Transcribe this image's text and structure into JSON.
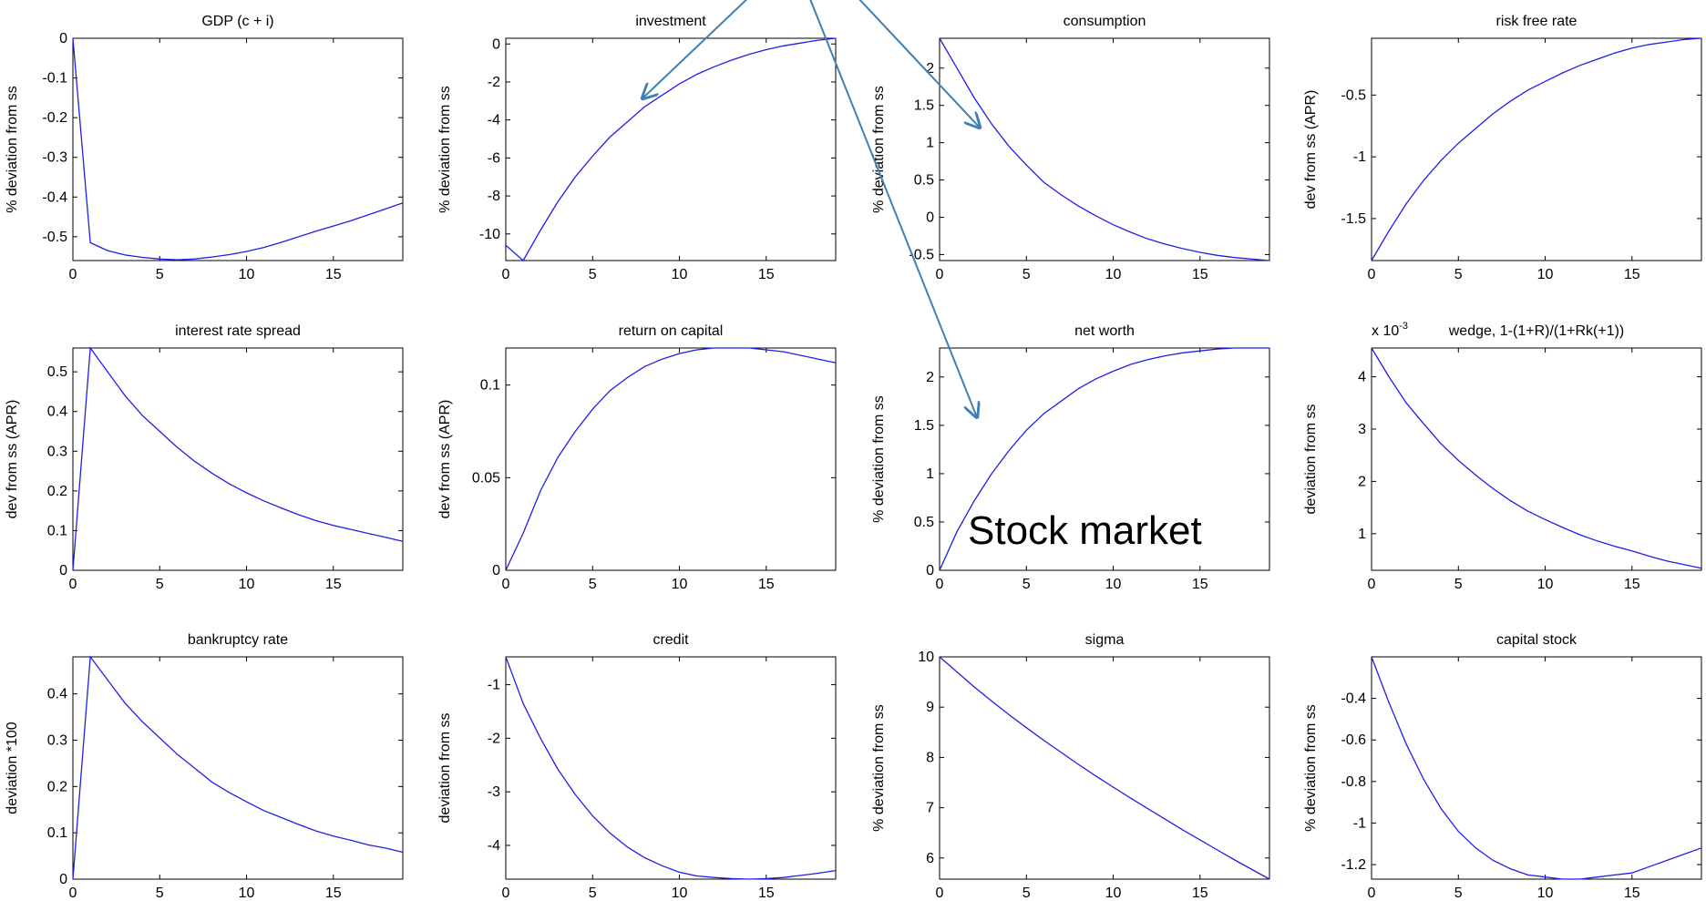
{
  "chart_data": [
    {
      "type": "line",
      "title": "GDP (c + i)",
      "xlabel": "",
      "ylabel": "% deviation from ss",
      "xlim": [
        0,
        19
      ],
      "ylim": [
        -0.56,
        0
      ],
      "xticks": [
        0,
        5,
        10,
        15
      ],
      "yticks": [
        -0.5,
        -0.4,
        -0.3,
        -0.2,
        -0.1,
        0
      ],
      "ytick_labels": [
        "-0.5",
        "-0.4",
        "-0.3",
        "-0.2",
        "-0.1",
        "0"
      ],
      "x": [
        0,
        1,
        2,
        3,
        4,
        5,
        6,
        7,
        8,
        9,
        10,
        11,
        12,
        13,
        14,
        15,
        16,
        17,
        18,
        19
      ],
      "y": [
        0,
        -0.515,
        -0.535,
        -0.546,
        -0.552,
        -0.556,
        -0.558,
        -0.556,
        -0.551,
        -0.545,
        -0.537,
        -0.527,
        -0.514,
        -0.5,
        -0.486,
        -0.473,
        -0.46,
        -0.445,
        -0.43,
        -0.415
      ]
    },
    {
      "type": "line",
      "title": "investment",
      "xlabel": "",
      "ylabel": "% deviation from ss",
      "xlim": [
        0,
        19
      ],
      "ylim": [
        -11.4,
        0.3
      ],
      "xticks": [
        0,
        5,
        10,
        15
      ],
      "yticks": [
        -10,
        -8,
        -6,
        -4,
        -2,
        0
      ],
      "ytick_labels": [
        "-10",
        "-8",
        "-6",
        "-4",
        "-2",
        "0"
      ],
      "x": [
        0,
        1,
        2,
        3,
        4,
        5,
        6,
        7,
        8,
        9,
        10,
        11,
        12,
        13,
        14,
        15,
        16,
        17,
        18,
        19
      ],
      "y": [
        -10.6,
        -11.4,
        -9.8,
        -8.3,
        -7.0,
        -5.9,
        -4.9,
        -4.1,
        -3.3,
        -2.7,
        -2.1,
        -1.6,
        -1.2,
        -0.85,
        -0.55,
        -0.3,
        -0.1,
        0.05,
        0.2,
        0.3
      ]
    },
    {
      "type": "line",
      "title": "consumption",
      "xlabel": "",
      "ylabel": "% deviation from ss",
      "xlim": [
        0,
        19
      ],
      "ylim": [
        -0.58,
        2.4
      ],
      "xticks": [
        0,
        5,
        10,
        15
      ],
      "yticks": [
        -0.5,
        0,
        0.5,
        1,
        1.5,
        2
      ],
      "ytick_labels": [
        "-0.5",
        "0",
        "0.5",
        "1",
        "1.5",
        "2"
      ],
      "x": [
        0,
        1,
        2,
        3,
        4,
        5,
        6,
        7,
        8,
        9,
        10,
        11,
        12,
        13,
        14,
        15,
        16,
        17,
        18,
        19
      ],
      "y": [
        2.4,
        2.0,
        1.6,
        1.25,
        0.95,
        0.7,
        0.47,
        0.3,
        0.15,
        0.02,
        -0.1,
        -0.2,
        -0.29,
        -0.36,
        -0.42,
        -0.47,
        -0.51,
        -0.54,
        -0.56,
        -0.58
      ]
    },
    {
      "type": "line",
      "title": "risk free rate",
      "xlabel": "",
      "ylabel": "dev from ss (APR)",
      "xlim": [
        0,
        19
      ],
      "ylim": [
        -1.84,
        -0.04
      ],
      "xticks": [
        0,
        5,
        10,
        15
      ],
      "yticks": [
        -1.5,
        -1,
        -0.5
      ],
      "ytick_labels": [
        "-1.5",
        "-1",
        "-0.5"
      ],
      "x": [
        0,
        1,
        2,
        3,
        4,
        5,
        6,
        7,
        8,
        9,
        10,
        11,
        12,
        13,
        14,
        15,
        16,
        17,
        18,
        19
      ],
      "y": [
        -1.84,
        -1.6,
        -1.38,
        -1.19,
        -1.03,
        -0.89,
        -0.77,
        -0.65,
        -0.55,
        -0.46,
        -0.39,
        -0.32,
        -0.26,
        -0.21,
        -0.16,
        -0.12,
        -0.09,
        -0.07,
        -0.05,
        -0.04
      ]
    },
    {
      "type": "line",
      "title": "interest rate spread",
      "xlabel": "",
      "ylabel": "dev from ss (APR)",
      "xlim": [
        0,
        19
      ],
      "ylim": [
        0,
        0.56
      ],
      "xticks": [
        0,
        5,
        10,
        15
      ],
      "yticks": [
        0,
        0.1,
        0.2,
        0.3,
        0.4,
        0.5
      ],
      "ytick_labels": [
        "0",
        "0.1",
        "0.2",
        "0.3",
        "0.4",
        "0.5"
      ],
      "x": [
        0,
        1,
        2,
        3,
        4,
        5,
        6,
        7,
        8,
        9,
        10,
        11,
        12,
        13,
        14,
        15,
        16,
        17,
        18,
        19
      ],
      "y": [
        0,
        0.56,
        0.5,
        0.44,
        0.39,
        0.35,
        0.31,
        0.275,
        0.245,
        0.218,
        0.195,
        0.175,
        0.157,
        0.14,
        0.125,
        0.113,
        0.103,
        0.093,
        0.083,
        0.073
      ]
    },
    {
      "type": "line",
      "title": "return on capital",
      "xlabel": "",
      "ylabel": "dev from ss (APR)",
      "xlim": [
        0,
        19
      ],
      "ylim": [
        0,
        0.12
      ],
      "xticks": [
        0,
        5,
        10,
        15
      ],
      "yticks": [
        0,
        0.05,
        0.1
      ],
      "ytick_labels": [
        "0",
        "0.05",
        "0.1"
      ],
      "x": [
        0,
        1,
        2,
        3,
        4,
        5,
        6,
        7,
        8,
        9,
        10,
        11,
        12,
        13,
        14,
        15,
        16,
        17,
        18,
        19
      ],
      "y": [
        0,
        0.02,
        0.043,
        0.061,
        0.075,
        0.087,
        0.097,
        0.104,
        0.11,
        0.114,
        0.117,
        0.119,
        0.12,
        0.12,
        0.12,
        0.119,
        0.118,
        0.116,
        0.114,
        0.112
      ]
    },
    {
      "type": "line",
      "title": "net worth",
      "xlabel": "",
      "ylabel": "% deviation from ss",
      "xlim": [
        0,
        19
      ],
      "ylim": [
        0,
        2.3
      ],
      "xticks": [
        0,
        5,
        10,
        15
      ],
      "yticks": [
        0,
        0.5,
        1,
        1.5,
        2
      ],
      "ytick_labels": [
        "0",
        "0.5",
        "1",
        "1.5",
        "2"
      ],
      "annotation": "Stock market",
      "x": [
        0,
        1,
        2,
        3,
        4,
        5,
        6,
        7,
        8,
        9,
        10,
        11,
        12,
        13,
        14,
        15,
        16,
        17,
        18,
        19
      ],
      "y": [
        0,
        0.4,
        0.72,
        1.0,
        1.24,
        1.45,
        1.62,
        1.75,
        1.88,
        1.98,
        2.06,
        2.13,
        2.18,
        2.22,
        2.25,
        2.27,
        2.29,
        2.3,
        2.3,
        2.3
      ]
    },
    {
      "type": "line",
      "title": "wedge, 1-(1+R)/(1+Rk(+1))",
      "xlabel": "",
      "ylabel": "deviation from ss",
      "xlim": [
        0,
        19
      ],
      "ylim": [
        0.3,
        4.55
      ],
      "scale_label": "x 10",
      "scale_exponent": "-3",
      "xticks": [
        0,
        5,
        10,
        15
      ],
      "yticks": [
        1,
        2,
        3,
        4
      ],
      "ytick_labels": [
        "1",
        "2",
        "3",
        "4"
      ],
      "x": [
        0,
        1,
        2,
        3,
        4,
        5,
        6,
        7,
        8,
        9,
        10,
        11,
        12,
        13,
        14,
        15,
        16,
        17,
        18,
        19
      ],
      "y": [
        4.55,
        4.0,
        3.5,
        3.1,
        2.72,
        2.4,
        2.12,
        1.86,
        1.63,
        1.43,
        1.27,
        1.12,
        0.98,
        0.86,
        0.76,
        0.67,
        0.57,
        0.48,
        0.41,
        0.34
      ]
    },
    {
      "type": "line",
      "title": "bankruptcy rate",
      "xlabel": "",
      "ylabel": "deviation *100",
      "xlim": [
        0,
        19
      ],
      "ylim": [
        0,
        0.48
      ],
      "xticks": [
        0,
        5,
        10,
        15
      ],
      "yticks": [
        0,
        0.1,
        0.2,
        0.3,
        0.4
      ],
      "ytick_labels": [
        "0",
        "0.1",
        "0.2",
        "0.3",
        "0.4"
      ],
      "x": [
        0,
        1,
        2,
        3,
        4,
        5,
        6,
        7,
        8,
        9,
        10,
        11,
        12,
        13,
        14,
        15,
        16,
        17,
        18,
        19
      ],
      "y": [
        0,
        0.48,
        0.43,
        0.38,
        0.34,
        0.305,
        0.27,
        0.24,
        0.21,
        0.187,
        0.167,
        0.148,
        0.133,
        0.118,
        0.104,
        0.093,
        0.084,
        0.074,
        0.067,
        0.058
      ]
    },
    {
      "type": "line",
      "title": "credit",
      "xlabel": "",
      "ylabel": "deviation from ss",
      "xlim": [
        0,
        19
      ],
      "ylim": [
        -4.63,
        -0.48
      ],
      "xticks": [
        0,
        5,
        10,
        15
      ],
      "yticks": [
        -4,
        -3,
        -2,
        -1
      ],
      "ytick_labels": [
        "-4",
        "-3",
        "-2",
        "-1"
      ],
      "x": [
        0,
        1,
        2,
        3,
        4,
        5,
        6,
        7,
        8,
        9,
        10,
        11,
        12,
        13,
        14,
        15,
        16,
        17,
        18,
        19
      ],
      "y": [
        -0.48,
        -1.35,
        -2.0,
        -2.58,
        -3.05,
        -3.45,
        -3.77,
        -4.03,
        -4.23,
        -4.38,
        -4.5,
        -4.57,
        -4.6,
        -4.62,
        -4.63,
        -4.62,
        -4.6,
        -4.56,
        -4.52,
        -4.47
      ]
    },
    {
      "type": "line",
      "title": "sigma",
      "xlabel": "",
      "ylabel": "% deviation from ss",
      "xlim": [
        0,
        19
      ],
      "ylim": [
        5.58,
        10.0
      ],
      "xticks": [
        0,
        5,
        10,
        15
      ],
      "yticks": [
        6,
        7,
        8,
        9,
        10
      ],
      "ytick_labels": [
        "6",
        "7",
        "8",
        "9",
        "10"
      ],
      "x": [
        0,
        1,
        2,
        3,
        4,
        5,
        6,
        7,
        8,
        9,
        10,
        11,
        12,
        13,
        14,
        15,
        16,
        17,
        18,
        19
      ],
      "y": [
        10.0,
        9.7,
        9.4,
        9.12,
        8.85,
        8.59,
        8.34,
        8.1,
        7.86,
        7.63,
        7.41,
        7.19,
        6.98,
        6.77,
        6.56,
        6.36,
        6.16,
        5.96,
        5.77,
        5.58
      ]
    },
    {
      "type": "line",
      "title": "capital stock",
      "xlabel": "",
      "ylabel": "% deviation from ss",
      "xlim": [
        0,
        19
      ],
      "ylim": [
        -1.27,
        -0.2
      ],
      "xticks": [
        0,
        5,
        10,
        15
      ],
      "yticks": [
        -1.2,
        -1,
        -0.8,
        -0.6,
        -0.4
      ],
      "ytick_labels": [
        "-1.2",
        "-1",
        "-0.8",
        "-0.6",
        "-0.4"
      ],
      "x": [
        0,
        1,
        2,
        3,
        4,
        5,
        6,
        7,
        8,
        9,
        10,
        11,
        12,
        13,
        14,
        15,
        16,
        17,
        18,
        19
      ],
      "y": [
        -0.2,
        -0.42,
        -0.62,
        -0.79,
        -0.93,
        -1.04,
        -1.12,
        -1.18,
        -1.22,
        -1.25,
        -1.26,
        -1.27,
        -1.27,
        -1.26,
        -1.25,
        -1.24,
        -1.21,
        -1.18,
        -1.15,
        -1.12
      ]
    }
  ],
  "colors": {
    "series": "#1f1fe6",
    "arrow": "#3f7fb4",
    "axis": "#000000"
  }
}
